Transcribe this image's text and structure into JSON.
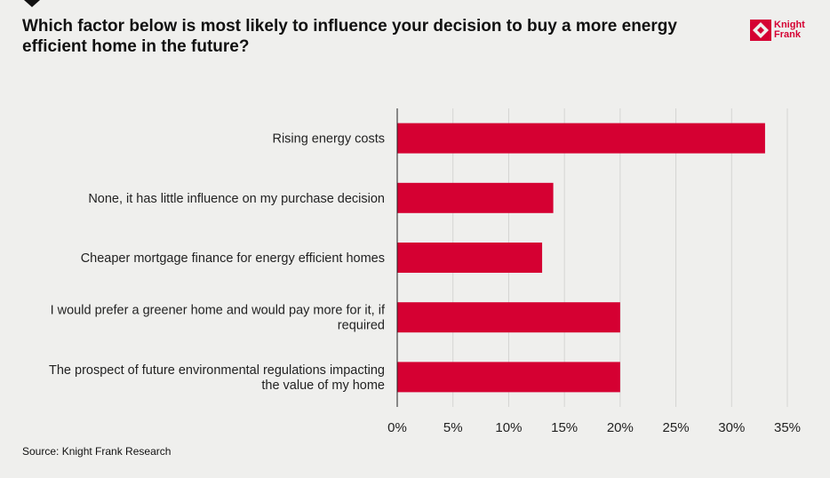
{
  "title": "Which factor below is most likely to influence your decision to buy a more energy efficient home in the future?",
  "logo": {
    "line1": "Knight",
    "line2": "Frank"
  },
  "source": "Source: Knight Frank Research",
  "colors": {
    "bar": "#d50032",
    "grid": "#d4d4d2",
    "axis": "#222222",
    "background": "#efefed"
  },
  "chart_data": {
    "type": "bar",
    "orientation": "horizontal",
    "categories": [
      [
        "Rising energy costs"
      ],
      [
        "None, it has little influence on my purchase decision"
      ],
      [
        "Cheaper mortgage finance for energy efficient homes"
      ],
      [
        "I would prefer a greener home and would pay more for it, if",
        "required"
      ],
      [
        "The prospect of future environmental regulations impacting",
        "the value of my home"
      ]
    ],
    "values": [
      33,
      14,
      13,
      20,
      20
    ],
    "xlim": [
      0,
      35
    ],
    "xticks": [
      0,
      5,
      10,
      15,
      20,
      25,
      30,
      35
    ],
    "tick_labels": [
      "0%",
      "5%",
      "10%",
      "15%",
      "20%",
      "25%",
      "30%",
      "35%"
    ],
    "grid": "vertical",
    "legend": "none"
  }
}
